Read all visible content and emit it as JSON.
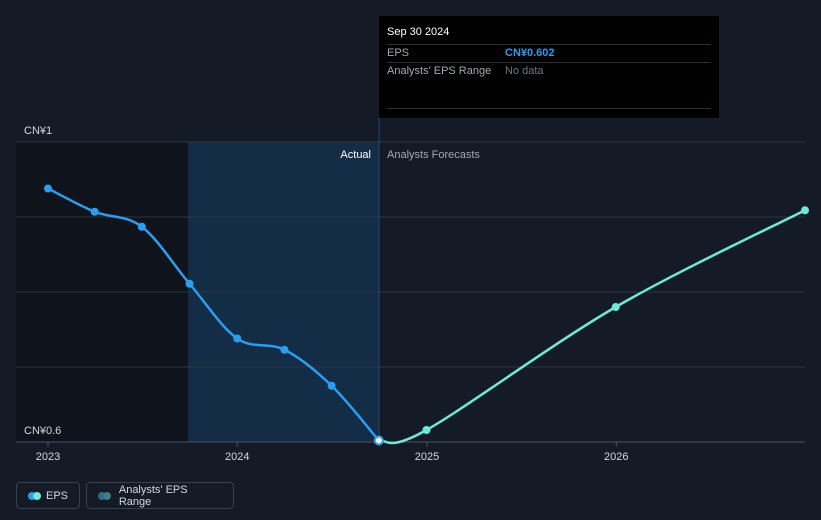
{
  "tooltip": {
    "date": "Sep 30 2024",
    "eps_label": "EPS",
    "eps_value": "CN¥0.602",
    "range_label": "Analysts' EPS Range",
    "range_value": "No data"
  },
  "legend": {
    "eps": "EPS",
    "range": "Analysts' EPS Range"
  },
  "colors": {
    "background": "#151b26",
    "actual_line": "#2a9ef0",
    "forecast_line": "#6cebd8",
    "actual_shade": "#132d46",
    "grid": "#2e3440"
  },
  "chart_data": {
    "type": "line",
    "y_axis_labels": [
      "CN¥1",
      "CN¥0.6"
    ],
    "ylim": [
      0.6,
      1.0
    ],
    "x_ticks": [
      "2023",
      "2024",
      "2025",
      "2026"
    ],
    "divider_labels": {
      "actual": "Actual",
      "forecast": "Analysts Forecasts"
    },
    "series": [
      {
        "name": "EPS",
        "segment": "actual",
        "x": [
          "2023-01-01",
          "2023-04-01",
          "2023-07-01",
          "2023-10-01",
          "2024-01-01",
          "2024-04-01",
          "2024-07-01",
          "2024-09-30"
        ],
        "values": [
          0.938,
          0.907,
          0.887,
          0.811,
          0.738,
          0.723,
          0.675,
          0.602
        ]
      },
      {
        "name": "EPS",
        "segment": "forecast",
        "x": [
          "2024-09-30",
          "2024-12-31",
          "2025-12-31",
          "2026-12-31"
        ],
        "values": [
          0.602,
          0.616,
          0.78,
          0.909
        ]
      }
    ]
  }
}
